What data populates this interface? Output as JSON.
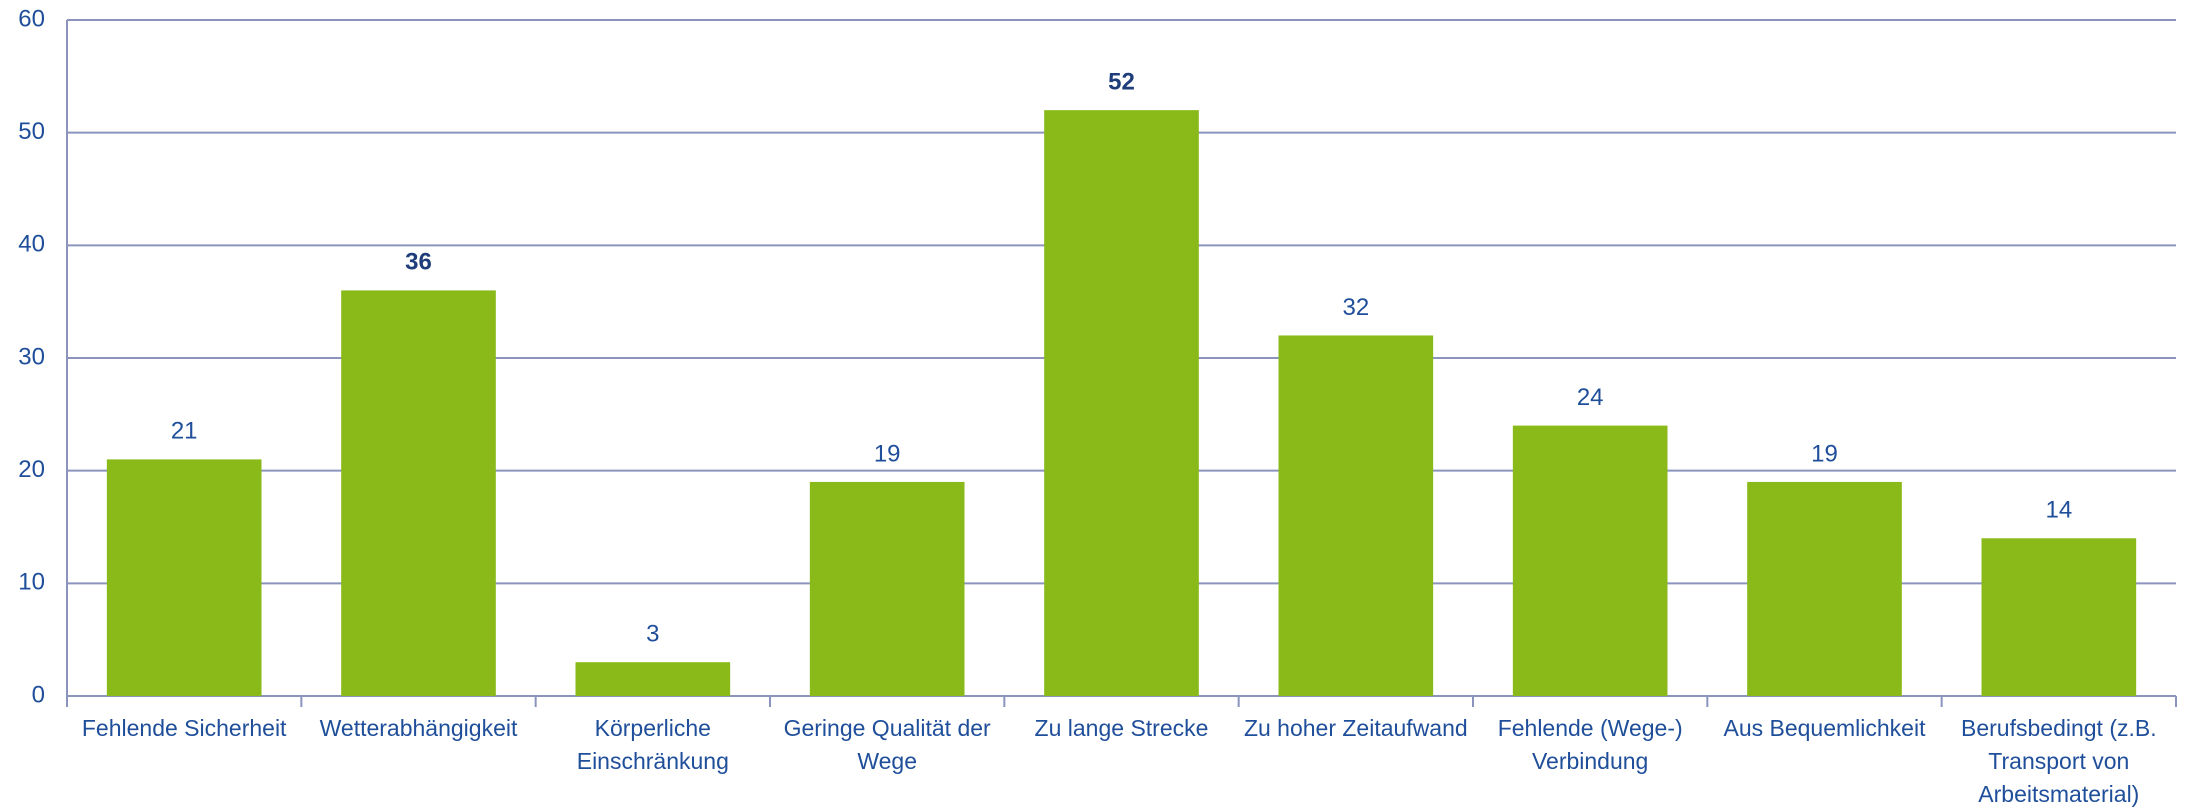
{
  "chart_data": {
    "type": "bar",
    "categories": [
      "Fehlende Sicherheit",
      "Wetterabhängigkeit",
      "Körperliche Einschränkung",
      "Geringe Qualität der Wege",
      "Zu lange Strecke",
      "Zu hoher Zeitaufwand",
      "Fehlende (Wege-) Verbindung",
      "Aus Bequemlichkeit",
      "Berufsbedingt (z.B. Transport von Arbeitsmaterial)"
    ],
    "values": [
      21,
      36,
      3,
      19,
      52,
      32,
      24,
      19,
      14
    ],
    "label_bold": [
      false,
      true,
      false,
      false,
      true,
      false,
      false,
      false,
      false
    ],
    "color": "#8aba1a",
    "ylim": [
      0,
      60
    ],
    "yticks": [
      0,
      10,
      20,
      30,
      40,
      50,
      60
    ],
    "grid": true
  }
}
